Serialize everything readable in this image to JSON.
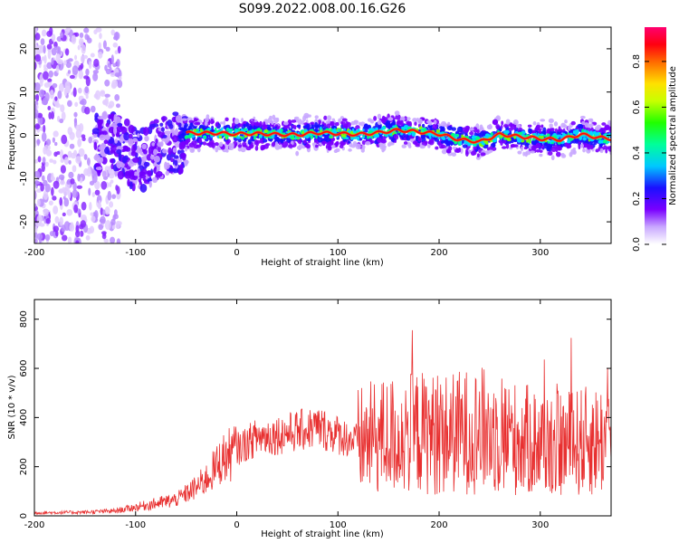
{
  "title": "S099.2022.008.00.16.G26",
  "chart_data": [
    {
      "type": "heatmap",
      "xlabel": "Height of straight line (km)",
      "ylabel": "Frequency (Hz)",
      "xlim": [
        -200,
        370
      ],
      "ylim": [
        -25,
        25
      ],
      "xticks": [
        -200,
        -100,
        0,
        100,
        200,
        300
      ],
      "yticks": [
        -20,
        -10,
        0,
        10,
        20
      ],
      "colorbar": {
        "label": "Normalized spectral amplitude",
        "range": [
          0.0,
          0.95
        ],
        "ticks": [
          0.0,
          0.2,
          0.4,
          0.6,
          0.8
        ]
      },
      "ridge_line": {
        "x": [
          -50,
          -20,
          0,
          20,
          40,
          60,
          80,
          100,
          120,
          140,
          160,
          180,
          200,
          220,
          240,
          260,
          280,
          300,
          320,
          340,
          360,
          370
        ],
        "y": [
          0.5,
          0.5,
          0.3,
          0.4,
          0.2,
          0.1,
          0.6,
          0.4,
          0.2,
          0.6,
          1.2,
          0.8,
          0.3,
          -1.0,
          -1.5,
          0.2,
          -0.3,
          -0.8,
          -1.0,
          0.2,
          -0.6,
          -0.8
        ]
      }
    },
    {
      "type": "line",
      "xlabel": "Height of straight line (km)",
      "ylabel": "SNR (10 * v/v)",
      "xlim": [
        -200,
        370
      ],
      "ylim": [
        0,
        880
      ],
      "xticks": [
        -200,
        -100,
        0,
        100,
        200,
        300
      ],
      "yticks": [
        0,
        200,
        400,
        600,
        800
      ],
      "color": "#e83030",
      "series": [
        {
          "x": [
            -200,
            -150,
            -120,
            -100,
            -80,
            -60,
            -50,
            -40,
            -30,
            -20,
            -15,
            -10,
            0,
            20,
            40,
            60,
            80,
            100,
            120,
            140,
            160,
            180,
            200,
            220,
            240,
            260,
            280,
            300,
            320,
            340,
            360,
            370
          ],
          "y": [
            12,
            15,
            20,
            35,
            50,
            65,
            90,
            115,
            150,
            200,
            230,
            240,
            270,
            320,
            330,
            345,
            360,
            330,
            300,
            320,
            330,
            340,
            330,
            340,
            350,
            330,
            310,
            300,
            290,
            300,
            310,
            310
          ]
        }
      ]
    }
  ]
}
